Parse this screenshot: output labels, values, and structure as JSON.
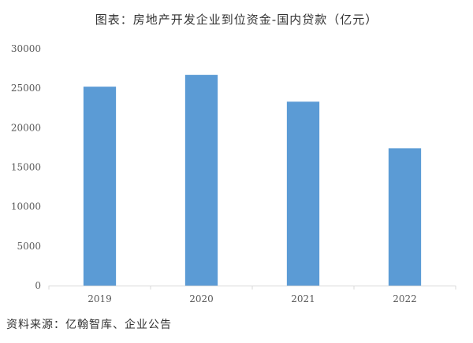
{
  "chart_data": {
    "type": "bar",
    "title": "图表：房地产开发企业到位资金-国内贷款（亿元）",
    "categories": [
      "2019",
      "2020",
      "2021",
      "2022"
    ],
    "values": [
      25200,
      26700,
      23300,
      17400
    ],
    "ylim": [
      0,
      30000
    ],
    "yticks": [
      0,
      5000,
      10000,
      15000,
      20000,
      25000,
      30000
    ],
    "xlabel": "",
    "ylabel": "",
    "grid": false,
    "legend": "none",
    "bar_color": "#5b9bd5",
    "axis_color": "#d9d9d9"
  },
  "footer": {
    "source": "资料来源：亿翰智库、企业公告"
  }
}
